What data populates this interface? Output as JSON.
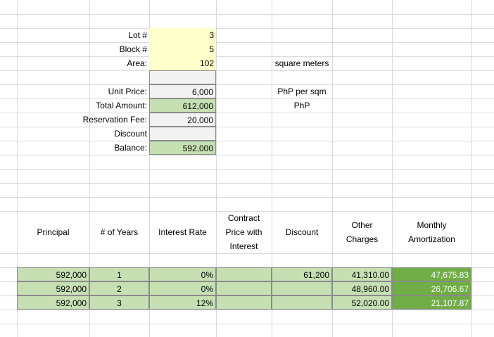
{
  "sheet": {
    "info_labels": {
      "lot": "Lot #",
      "block": "Block #",
      "area": "Area:",
      "unit_price": "Unit Price:",
      "total_amount": "Total Amount:",
      "reservation_fee": "Reservation Fee:",
      "discount": "Discount",
      "balance": "Balance:"
    },
    "info_values": {
      "lot": "3",
      "block": "5",
      "area": "102",
      "blank": "",
      "unit_price": "6,000",
      "total_amount": "612,000",
      "reservation_fee": "20,000",
      "discount": "",
      "balance": "592,000"
    },
    "units": {
      "area": "square meters",
      "unit_price": "PhP per sqm",
      "total_amount": "PhP"
    },
    "table": {
      "headers": {
        "principal": "Principal",
        "years": "# of Years",
        "interest_rate": "Interest Rate",
        "contract_price_l1": "Contract",
        "contract_price_l2": "Price with",
        "contract_price_l3": "Interest",
        "discount": "Discount",
        "other_charges_l1": "Other",
        "other_charges_l2": "Charges",
        "monthly_l1": "Monthly",
        "monthly_l2": "Amortization"
      },
      "rows": [
        {
          "principal": "592,000",
          "years": "1",
          "rate": "0%",
          "contract": "",
          "discount": "61,200",
          "other": "41,310.00",
          "monthly": "47,675.83"
        },
        {
          "principal": "592,000",
          "years": "2",
          "rate": "0%",
          "contract": "",
          "discount": "",
          "other": "48,960.00",
          "monthly": "26,706.67"
        },
        {
          "principal": "592,000",
          "years": "3",
          "rate": "12%",
          "contract": "",
          "discount": "",
          "other": "52,020.00",
          "monthly": "21,107.87"
        }
      ]
    }
  },
  "colors": {
    "input_yellow": "#ffffcc",
    "light_gray": "#f2f2f2",
    "light_green": "#c6e0b4",
    "dark_green": "#70ad47",
    "gridline": "#d9d9d9"
  }
}
